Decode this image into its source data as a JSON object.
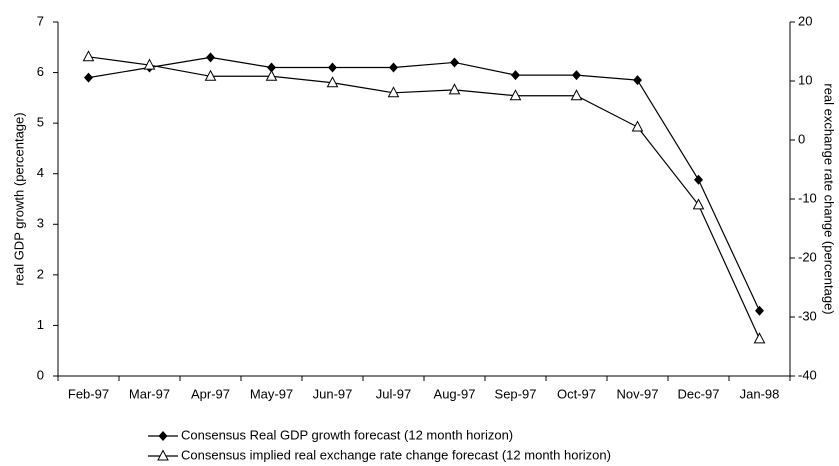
{
  "chart_data": {
    "type": "line",
    "categories": [
      "Feb-97",
      "Mar-97",
      "Apr-97",
      "May-97",
      "Jun-97",
      "Jul-97",
      "Aug-97",
      "Sep-97",
      "Oct-97",
      "Nov-97",
      "Dec-97",
      "Jan-98"
    ],
    "ylabel": "real GDP growth (percentage)",
    "y2label": "real exchange rate change (percentage)",
    "ylim": [
      0,
      7
    ],
    "yticks": [
      0,
      1,
      2,
      3,
      4,
      5,
      6,
      7
    ],
    "y2lim": [
      -40,
      20
    ],
    "y2ticks": [
      -40,
      -30,
      -20,
      -10,
      0,
      10,
      20
    ],
    "grid": false,
    "series": [
      {
        "name": "Consensus Real GDP growth forecast (12 month horizon)",
        "color": "#000000",
        "marker": "diamond",
        "values": [
          5.9,
          6.1,
          6.3,
          6.1,
          6.1,
          6.1,
          6.2,
          5.95,
          5.95,
          5.85,
          3.88,
          1.29
        ]
      },
      {
        "name": "Consensus implied real exchange rate change forecast (12 month horizon)",
        "color": "#000000",
        "marker": "triangle",
        "axis": "y2",
        "values": [
          14.1,
          12.7,
          10.8,
          10.8,
          9.7,
          8.0,
          8.5,
          7.5,
          7.5,
          2.2,
          -11,
          -33.7
        ]
      }
    ]
  }
}
